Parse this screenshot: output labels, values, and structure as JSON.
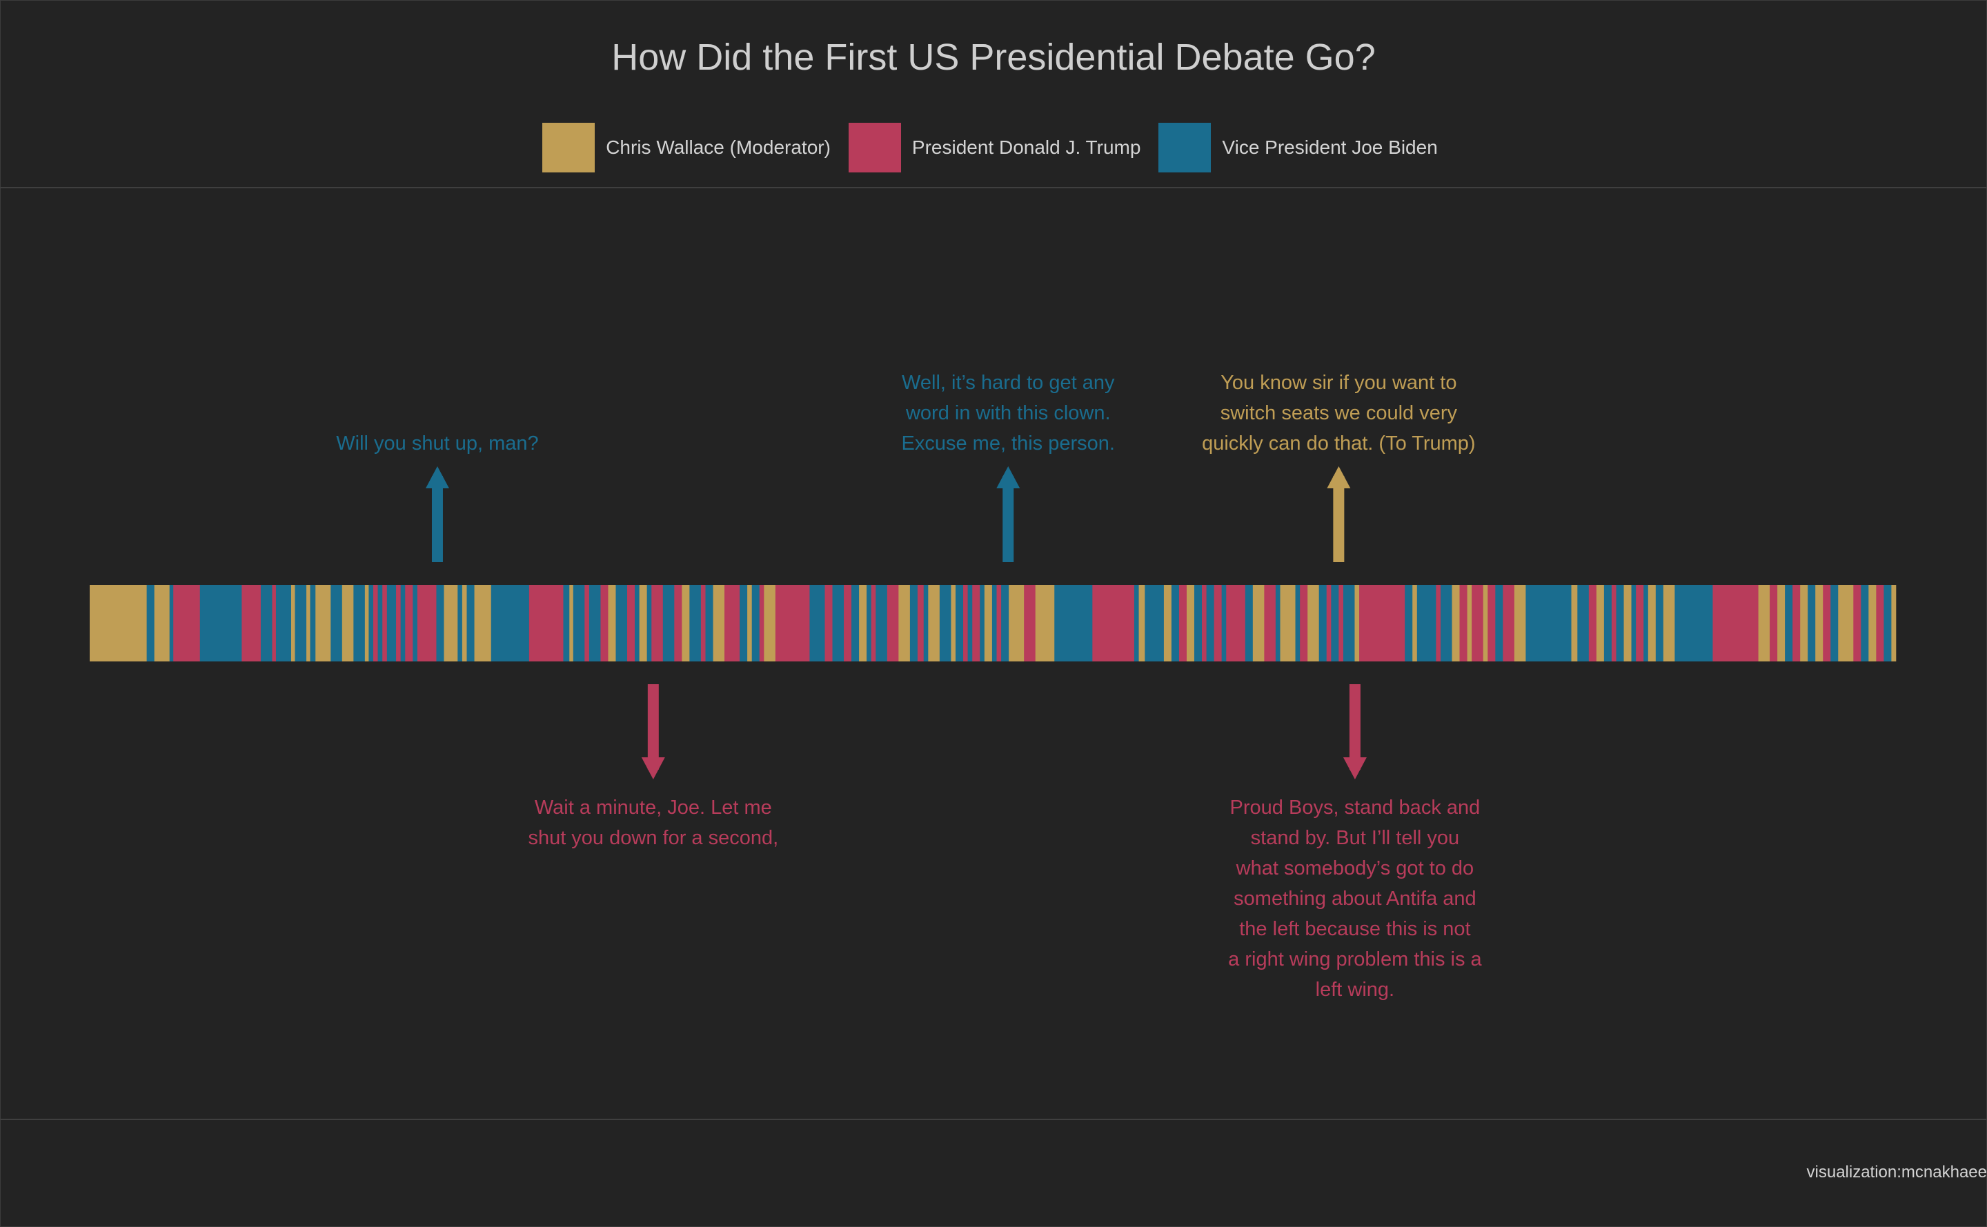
{
  "chart_data": {
    "type": "timeline",
    "title": "How Did the First US Presidential Debate Go?",
    "legend": [
      {
        "key": "wallace",
        "label": "Chris Wallace (Moderator)",
        "color": "#c09e55"
      },
      {
        "key": "trump",
        "label": "President Donald J. Trump",
        "color": "#b83c5b"
      },
      {
        "key": "biden",
        "label": "Vice President Joe Biden",
        "color": "#1a6d8f"
      }
    ],
    "segments": [
      {
        "s": "wallace",
        "d": 7.5
      },
      {
        "s": "biden",
        "d": 1
      },
      {
        "s": "wallace",
        "d": 2
      },
      {
        "s": "biden",
        "d": 0.5
      },
      {
        "s": "trump",
        "d": 3.5
      },
      {
        "s": "biden",
        "d": 5.5
      },
      {
        "s": "trump",
        "d": 2.5
      },
      {
        "s": "biden",
        "d": 1.5
      },
      {
        "s": "trump",
        "d": 0.5
      },
      {
        "s": "biden",
        "d": 2
      },
      {
        "s": "wallace",
        "d": 0.5
      },
      {
        "s": "biden",
        "d": 1.5
      },
      {
        "s": "wallace",
        "d": 0.5
      },
      {
        "s": "biden",
        "d": 0.7
      },
      {
        "s": "wallace",
        "d": 2
      },
      {
        "s": "biden",
        "d": 1.5
      },
      {
        "s": "wallace",
        "d": 1.5
      },
      {
        "s": "biden",
        "d": 1.5
      },
      {
        "s": "wallace",
        "d": 0.5
      },
      {
        "s": "biden",
        "d": 0.6
      },
      {
        "s": "trump",
        "d": 0.6
      },
      {
        "s": "biden",
        "d": 0.6
      },
      {
        "s": "trump",
        "d": 0.6
      },
      {
        "s": "biden",
        "d": 1.2
      },
      {
        "s": "trump",
        "d": 0.6
      },
      {
        "s": "biden",
        "d": 0.6
      },
      {
        "s": "trump",
        "d": 1
      },
      {
        "s": "biden",
        "d": 0.6
      },
      {
        "s": "trump",
        "d": 2.5
      },
      {
        "s": "biden",
        "d": 1
      },
      {
        "s": "wallace",
        "d": 1.8
      },
      {
        "s": "biden",
        "d": 0.6
      },
      {
        "s": "wallace",
        "d": 0.6
      },
      {
        "s": "biden",
        "d": 1
      },
      {
        "s": "wallace",
        "d": 2.2
      },
      {
        "s": "biden",
        "d": 5
      },
      {
        "s": "trump",
        "d": 4.5
      },
      {
        "s": "biden",
        "d": 0.8
      },
      {
        "s": "wallace",
        "d": 0.5
      },
      {
        "s": "biden",
        "d": 1.5
      },
      {
        "s": "trump",
        "d": 0.6
      },
      {
        "s": "biden",
        "d": 1.5
      },
      {
        "s": "trump",
        "d": 1
      },
      {
        "s": "wallace",
        "d": 1
      },
      {
        "s": "biden",
        "d": 1.5
      },
      {
        "s": "trump",
        "d": 1
      },
      {
        "s": "biden",
        "d": 0.6
      },
      {
        "s": "wallace",
        "d": 1
      },
      {
        "s": "biden",
        "d": 0.6
      },
      {
        "s": "trump",
        "d": 1.5
      },
      {
        "s": "biden",
        "d": 1.5
      },
      {
        "s": "trump",
        "d": 1
      },
      {
        "s": "wallace",
        "d": 1
      },
      {
        "s": "biden",
        "d": 1.5
      },
      {
        "s": "trump",
        "d": 0.6
      },
      {
        "s": "biden",
        "d": 1
      },
      {
        "s": "wallace",
        "d": 1.5
      },
      {
        "s": "trump",
        "d": 2
      },
      {
        "s": "biden",
        "d": 1
      },
      {
        "s": "wallace",
        "d": 0.6
      },
      {
        "s": "biden",
        "d": 1
      },
      {
        "s": "trump",
        "d": 0.6
      },
      {
        "s": "wallace",
        "d": 1.5
      },
      {
        "s": "trump",
        "d": 4.5
      },
      {
        "s": "biden",
        "d": 2
      },
      {
        "s": "trump",
        "d": 1
      },
      {
        "s": "biden",
        "d": 1.5
      },
      {
        "s": "trump",
        "d": 1
      },
      {
        "s": "biden",
        "d": 1
      },
      {
        "s": "wallace",
        "d": 1
      },
      {
        "s": "biden",
        "d": 0.6
      },
      {
        "s": "trump",
        "d": 0.6
      },
      {
        "s": "biden",
        "d": 1.5
      },
      {
        "s": "trump",
        "d": 1.5
      },
      {
        "s": "wallace",
        "d": 1.5
      },
      {
        "s": "biden",
        "d": 1
      },
      {
        "s": "trump",
        "d": 0.8
      },
      {
        "s": "biden",
        "d": 0.6
      },
      {
        "s": "wallace",
        "d": 1.5
      },
      {
        "s": "biden",
        "d": 1.5
      },
      {
        "s": "wallace",
        "d": 0.6
      },
      {
        "s": "biden",
        "d": 1
      },
      {
        "s": "trump",
        "d": 0.6
      },
      {
        "s": "biden",
        "d": 0.6
      },
      {
        "s": "trump",
        "d": 1
      },
      {
        "s": "biden",
        "d": 0.6
      },
      {
        "s": "wallace",
        "d": 1
      },
      {
        "s": "biden",
        "d": 0.6
      },
      {
        "s": "trump",
        "d": 0.6
      },
      {
        "s": "biden",
        "d": 1
      },
      {
        "s": "wallace",
        "d": 2
      },
      {
        "s": "trump",
        "d": 1.5
      },
      {
        "s": "wallace",
        "d": 2.5
      },
      {
        "s": "biden",
        "d": 5
      },
      {
        "s": "trump",
        "d": 5.5
      },
      {
        "s": "biden",
        "d": 0.6
      },
      {
        "s": "wallace",
        "d": 0.8
      },
      {
        "s": "biden",
        "d": 2.5
      },
      {
        "s": "wallace",
        "d": 1
      },
      {
        "s": "biden",
        "d": 1
      },
      {
        "s": "trump",
        "d": 1
      },
      {
        "s": "wallace",
        "d": 1
      },
      {
        "s": "biden",
        "d": 1
      },
      {
        "s": "trump",
        "d": 0.6
      },
      {
        "s": "biden",
        "d": 1
      },
      {
        "s": "trump",
        "d": 1
      },
      {
        "s": "biden",
        "d": 0.6
      },
      {
        "s": "trump",
        "d": 2.5
      },
      {
        "s": "biden",
        "d": 1
      },
      {
        "s": "wallace",
        "d": 1.5
      },
      {
        "s": "trump",
        "d": 1.5
      },
      {
        "s": "biden",
        "d": 0.6
      },
      {
        "s": "wallace",
        "d": 2
      },
      {
        "s": "biden",
        "d": 0.6
      },
      {
        "s": "trump",
        "d": 1
      },
      {
        "s": "wallace",
        "d": 1.5
      },
      {
        "s": "biden",
        "d": 1
      },
      {
        "s": "trump",
        "d": 0.6
      },
      {
        "s": "biden",
        "d": 1
      },
      {
        "s": "trump",
        "d": 0.6
      },
      {
        "s": "biden",
        "d": 1.5
      },
      {
        "s": "wallace",
        "d": 0.6
      },
      {
        "s": "trump",
        "d": 6
      },
      {
        "s": "biden",
        "d": 1
      },
      {
        "s": "wallace",
        "d": 0.6
      },
      {
        "s": "biden",
        "d": 2.5
      },
      {
        "s": "trump",
        "d": 0.6
      },
      {
        "s": "biden",
        "d": 1.5
      },
      {
        "s": "wallace",
        "d": 1
      },
      {
        "s": "trump",
        "d": 1
      },
      {
        "s": "wallace",
        "d": 0.6
      },
      {
        "s": "trump",
        "d": 1.5
      },
      {
        "s": "wallace",
        "d": 0.6
      },
      {
        "s": "trump",
        "d": 1
      },
      {
        "s": "biden",
        "d": 1
      },
      {
        "s": "trump",
        "d": 1.5
      },
      {
        "s": "wallace",
        "d": 1.5
      },
      {
        "s": "biden",
        "d": 6
      },
      {
        "s": "wallace",
        "d": 0.8
      },
      {
        "s": "biden",
        "d": 1.5
      },
      {
        "s": "trump",
        "d": 1
      },
      {
        "s": "wallace",
        "d": 1
      },
      {
        "s": "biden",
        "d": 1
      },
      {
        "s": "trump",
        "d": 0.6
      },
      {
        "s": "biden",
        "d": 1
      },
      {
        "s": "wallace",
        "d": 1
      },
      {
        "s": "biden",
        "d": 0.6
      },
      {
        "s": "trump",
        "d": 1
      },
      {
        "s": "biden",
        "d": 0.6
      },
      {
        "s": "wallace",
        "d": 1
      },
      {
        "s": "biden",
        "d": 1
      },
      {
        "s": "wallace",
        "d": 1.5
      },
      {
        "s": "biden",
        "d": 5
      },
      {
        "s": "trump",
        "d": 6
      },
      {
        "s": "wallace",
        "d": 1.5
      },
      {
        "s": "trump",
        "d": 1
      },
      {
        "s": "wallace",
        "d": 1
      },
      {
        "s": "biden",
        "d": 1
      },
      {
        "s": "trump",
        "d": 1
      },
      {
        "s": "wallace",
        "d": 1
      },
      {
        "s": "biden",
        "d": 1
      },
      {
        "s": "wallace",
        "d": 1
      },
      {
        "s": "trump",
        "d": 1
      },
      {
        "s": "biden",
        "d": 1
      },
      {
        "s": "wallace",
        "d": 2
      },
      {
        "s": "trump",
        "d": 1
      },
      {
        "s": "biden",
        "d": 1
      },
      {
        "s": "wallace",
        "d": 1
      },
      {
        "s": "trump",
        "d": 1
      },
      {
        "s": "biden",
        "d": 1
      },
      {
        "s": "wallace",
        "d": 0.6
      }
    ],
    "annotations": [
      {
        "speaker": "biden",
        "pos": 0.1925,
        "dir": "up",
        "lines": [
          "Will you shut up, man?"
        ]
      },
      {
        "speaker": "trump",
        "pos": 0.312,
        "dir": "down",
        "lines": [
          "Wait a minute, Joe. Let me",
          "shut you down for a second,"
        ]
      },
      {
        "speaker": "biden",
        "pos": 0.5085,
        "dir": "up",
        "lines": [
          "Well, it’s hard to get any",
          "word in with this clown.",
          "Excuse me, this person."
        ]
      },
      {
        "speaker": "wallace",
        "pos": 0.6915,
        "dir": "up",
        "lines": [
          "You know sir if you want to",
          "switch seats we could very",
          "quickly can do that. (To Trump)"
        ]
      },
      {
        "speaker": "trump",
        "pos": 0.7005,
        "dir": "down",
        "lines": [
          "Proud Boys, stand back and",
          "stand by. But I’ll tell you",
          "what somebody’s got to do",
          "something about Antifa and",
          "the left because this is not",
          "a right wing problem this is a",
          "left wing."
        ]
      }
    ]
  },
  "footer": {
    "credit": "visualization:mcnakhaee"
  }
}
